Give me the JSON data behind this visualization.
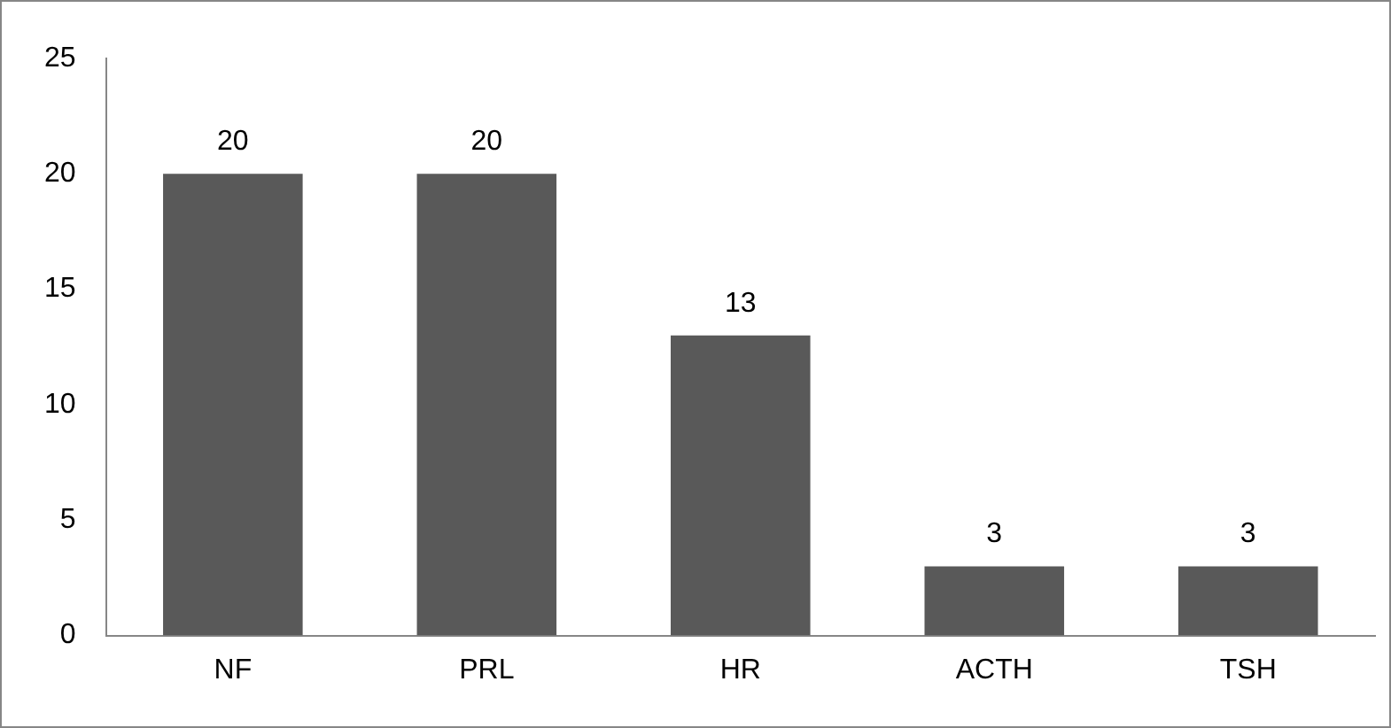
{
  "chart_data": {
    "type": "bar",
    "categories": [
      "NF",
      "PRL",
      "HR",
      "ACTH",
      "TSH"
    ],
    "values": [
      20,
      20,
      13,
      3,
      3
    ],
    "color": "#595959",
    "ylim": [
      0,
      25
    ],
    "yticks": [
      0,
      5,
      10,
      15,
      20,
      25
    ],
    "grid": false,
    "data_labels": true,
    "legend": false
  }
}
